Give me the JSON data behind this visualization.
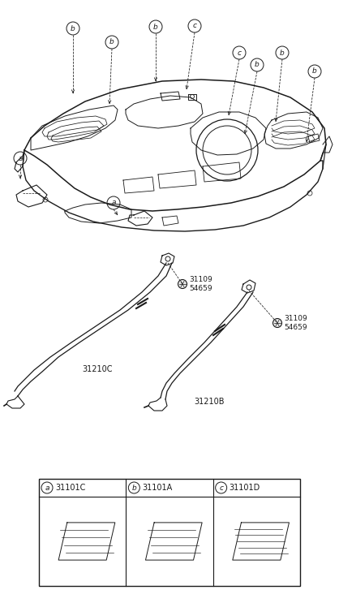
{
  "bg_color": "#ffffff",
  "line_color": "#1a1a1a",
  "parts": {
    "strap1": "31210C",
    "strap2": "31210B",
    "bolt1": "31109\n54659",
    "bolt2": "31109\n54659",
    "legend_a": "31101C",
    "legend_b": "31101A",
    "legend_c": "31101D"
  },
  "figsize": [
    4.18,
    7.27
  ],
  "dpi": 100
}
